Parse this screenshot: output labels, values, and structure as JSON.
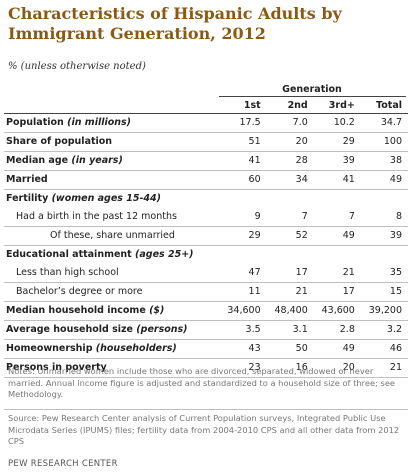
{
  "title": "Characteristics of Hispanic Adults by Immigrant Generation, 2012",
  "subtitle": "% (unless otherwise noted)",
  "generation_header": "Generation",
  "columns": [
    "1st",
    "2nd",
    "3rd+",
    "Total"
  ],
  "rows": [
    {
      "label": "Population ",
      "label_note": "(in millions)",
      "values": [
        "17.5",
        "7.0",
        "10.2",
        "34.7"
      ]
    },
    {
      "label": "Share of population",
      "label_note": "",
      "values": [
        "51",
        "20",
        "29",
        "100"
      ]
    },
    {
      "label": "Median age ",
      "label_note": "(in years)",
      "values": [
        "41",
        "28",
        "39",
        "38"
      ]
    },
    {
      "label": "Married",
      "label_note": "",
      "values": [
        "60",
        "34",
        "41",
        "49"
      ]
    },
    {
      "label": "Fertility ",
      "label_note": "(women ages 15-44)",
      "values": [
        "",
        "",
        "",
        ""
      ]
    },
    {
      "label": "Had a birth in the past 12 months",
      "label_note": "",
      "values": [
        "9",
        "7",
        "7",
        "8"
      ]
    },
    {
      "label": "Of these, share unmarried",
      "label_note": "",
      "values": [
        "29",
        "52",
        "49",
        "39"
      ]
    },
    {
      "label": "Educational attainment ",
      "label_note": "(ages 25+)",
      "values": [
        "",
        "",
        "",
        ""
      ]
    },
    {
      "label": "Less than high school",
      "label_note": "",
      "values": [
        "47",
        "17",
        "21",
        "35"
      ]
    },
    {
      "label": "Bachelor’s degree or more",
      "label_note": "",
      "values": [
        "11",
        "21",
        "17",
        "15"
      ]
    },
    {
      "label": "Median household income ",
      "label_note": "($)",
      "values": [
        "34,600",
        "48,400",
        "43,600",
        "39,200"
      ]
    },
    {
      "label": "Average household size ",
      "label_note": "(persons)",
      "values": [
        "3.5",
        "3.1",
        "2.8",
        "3.2"
      ]
    },
    {
      "label": "Homeownership ",
      "label_note": "(householders)",
      "values": [
        "43",
        "50",
        "49",
        "46"
      ]
    },
    {
      "label": "Persons in poverty",
      "label_note": "",
      "values": [
        "23",
        "16",
        "20",
        "21"
      ]
    }
  ],
  "notes": "Notes: Unmarried women include those who are divorced, separated, widowed or never married. Annual income figure is adjusted and standardized to a household size of three; see Methodology.",
  "source": "Source: Pew Research Center analysis of Current Population surveys, Integrated Public Use Microdata Series (IPUMS) files; fertility data from 2004-2010 CPS and all other data from 2012 CPS",
  "brand": "PEW RESEARCH CENTER"
}
